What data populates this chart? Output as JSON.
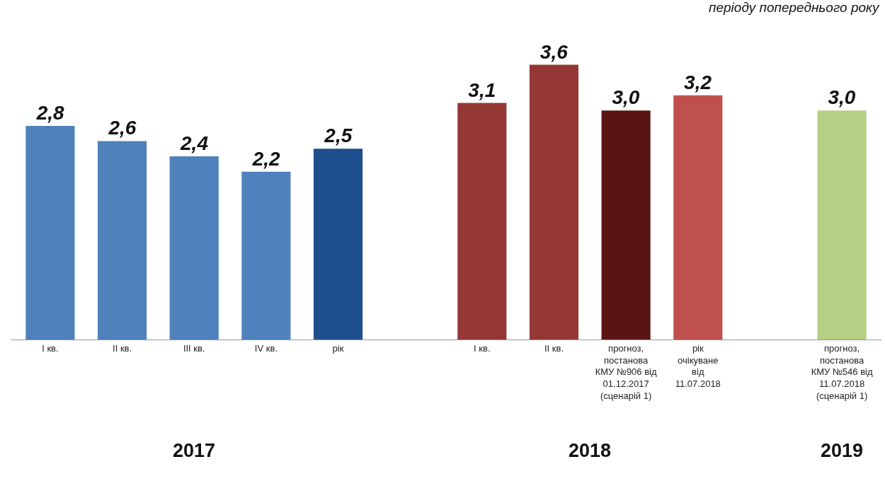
{
  "chart_data": {
    "type": "bar",
    "subtitle": "періоду попереднього року",
    "categories": [
      "I кв.",
      "II кв.",
      "III кв.",
      "IV кв.",
      "рік",
      null,
      "I кв.",
      "II кв.",
      "прогноз, постанова КМУ №906 від 01.12.2017 (сценарій 1)",
      "рік очікуване від 11.07.2018",
      null,
      "прогноз, постанова КМУ №546 від 11.07.2018 (сценарій 1)"
    ],
    "values": [
      2.8,
      2.6,
      2.4,
      2.2,
      2.5,
      null,
      3.1,
      3.6,
      3.0,
      3.2,
      null,
      3.0
    ],
    "value_labels": [
      "2,8",
      "2,6",
      "2,4",
      "2,2",
      "2,5",
      null,
      "3,1",
      "3,6",
      "3,0",
      "3,2",
      null,
      "3,0"
    ],
    "colors": [
      "#4f81bd",
      "#4f81bd",
      "#4f81bd",
      "#4f81bd",
      "#1f4e8c",
      "#ffffff",
      "#953735",
      "#953735",
      "#5a1414",
      "#c0504d",
      "#ffffff",
      "#b5cf84"
    ],
    "annotations": [
      "2017",
      "2018",
      "2019"
    ]
  }
}
